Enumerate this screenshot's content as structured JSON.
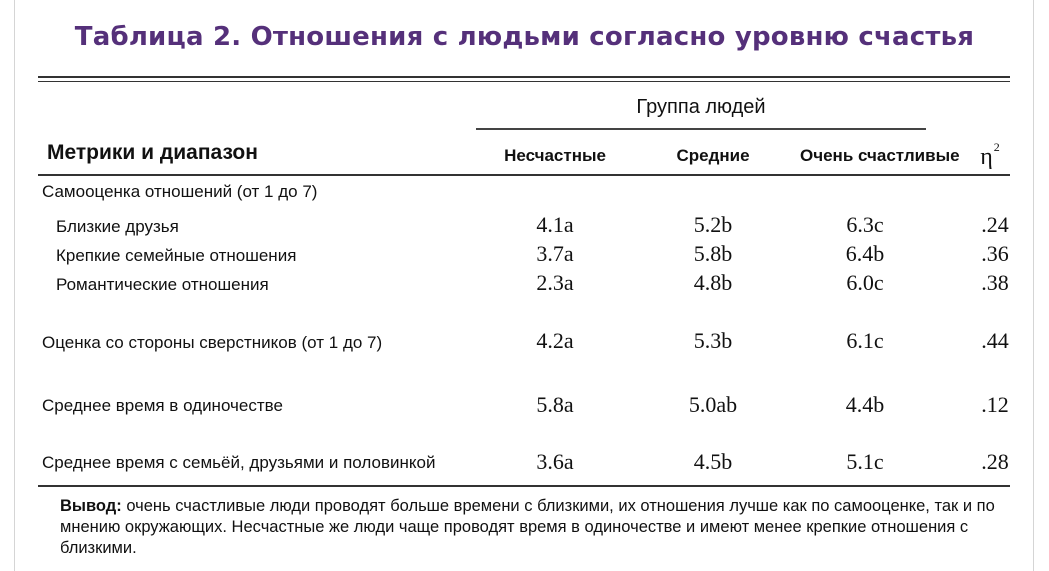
{
  "title": "Таблица 2. Отношения с людьми согласно уровню счастья",
  "header": {
    "group_label": "Группа людей",
    "metric_label": "Метрики и диапазон",
    "columns": [
      "Несчастные",
      "Средние",
      "Очень счастливые"
    ],
    "eta_symbol": "η",
    "eta_power": "2"
  },
  "section1": {
    "label": "Самооценка отношений (от 1 до 7)",
    "rows": [
      {
        "label": "Близкие друзья",
        "values": [
          "4.1a",
          "5.2b",
          "6.3c",
          ".24"
        ]
      },
      {
        "label": "Крепкие семейные отношения",
        "values": [
          "3.7a",
          "5.8b",
          "6.4b",
          ".36"
        ]
      },
      {
        "label": "Романтические отношения",
        "values": [
          "2.3a",
          "4.8b",
          "6.0c",
          ".38"
        ]
      }
    ]
  },
  "rows": [
    {
      "label": "Оценка со стороны сверстников (от 1 до 7)",
      "values": [
        "4.2a",
        "5.3b",
        "6.1c",
        ".44"
      ]
    },
    {
      "label": "Среднее время в одиночестве",
      "values": [
        "5.8a",
        "5.0ab",
        "4.4b",
        ".12"
      ]
    },
    {
      "label": "Среднее время с семьёй, друзьями и половинкой",
      "values": [
        "3.6a",
        "4.5b",
        "5.1c",
        ".28"
      ]
    }
  ],
  "conclusion": {
    "lead": "Вывод:",
    "text": " очень счастливые люди проводят больше времени с близкими, их отношения лучше как по самооценке, так и по мнению окружающих. Несчастные же люди чаще проводят время в одиночестве и имеют менее крепкие отношения с близкими."
  }
}
